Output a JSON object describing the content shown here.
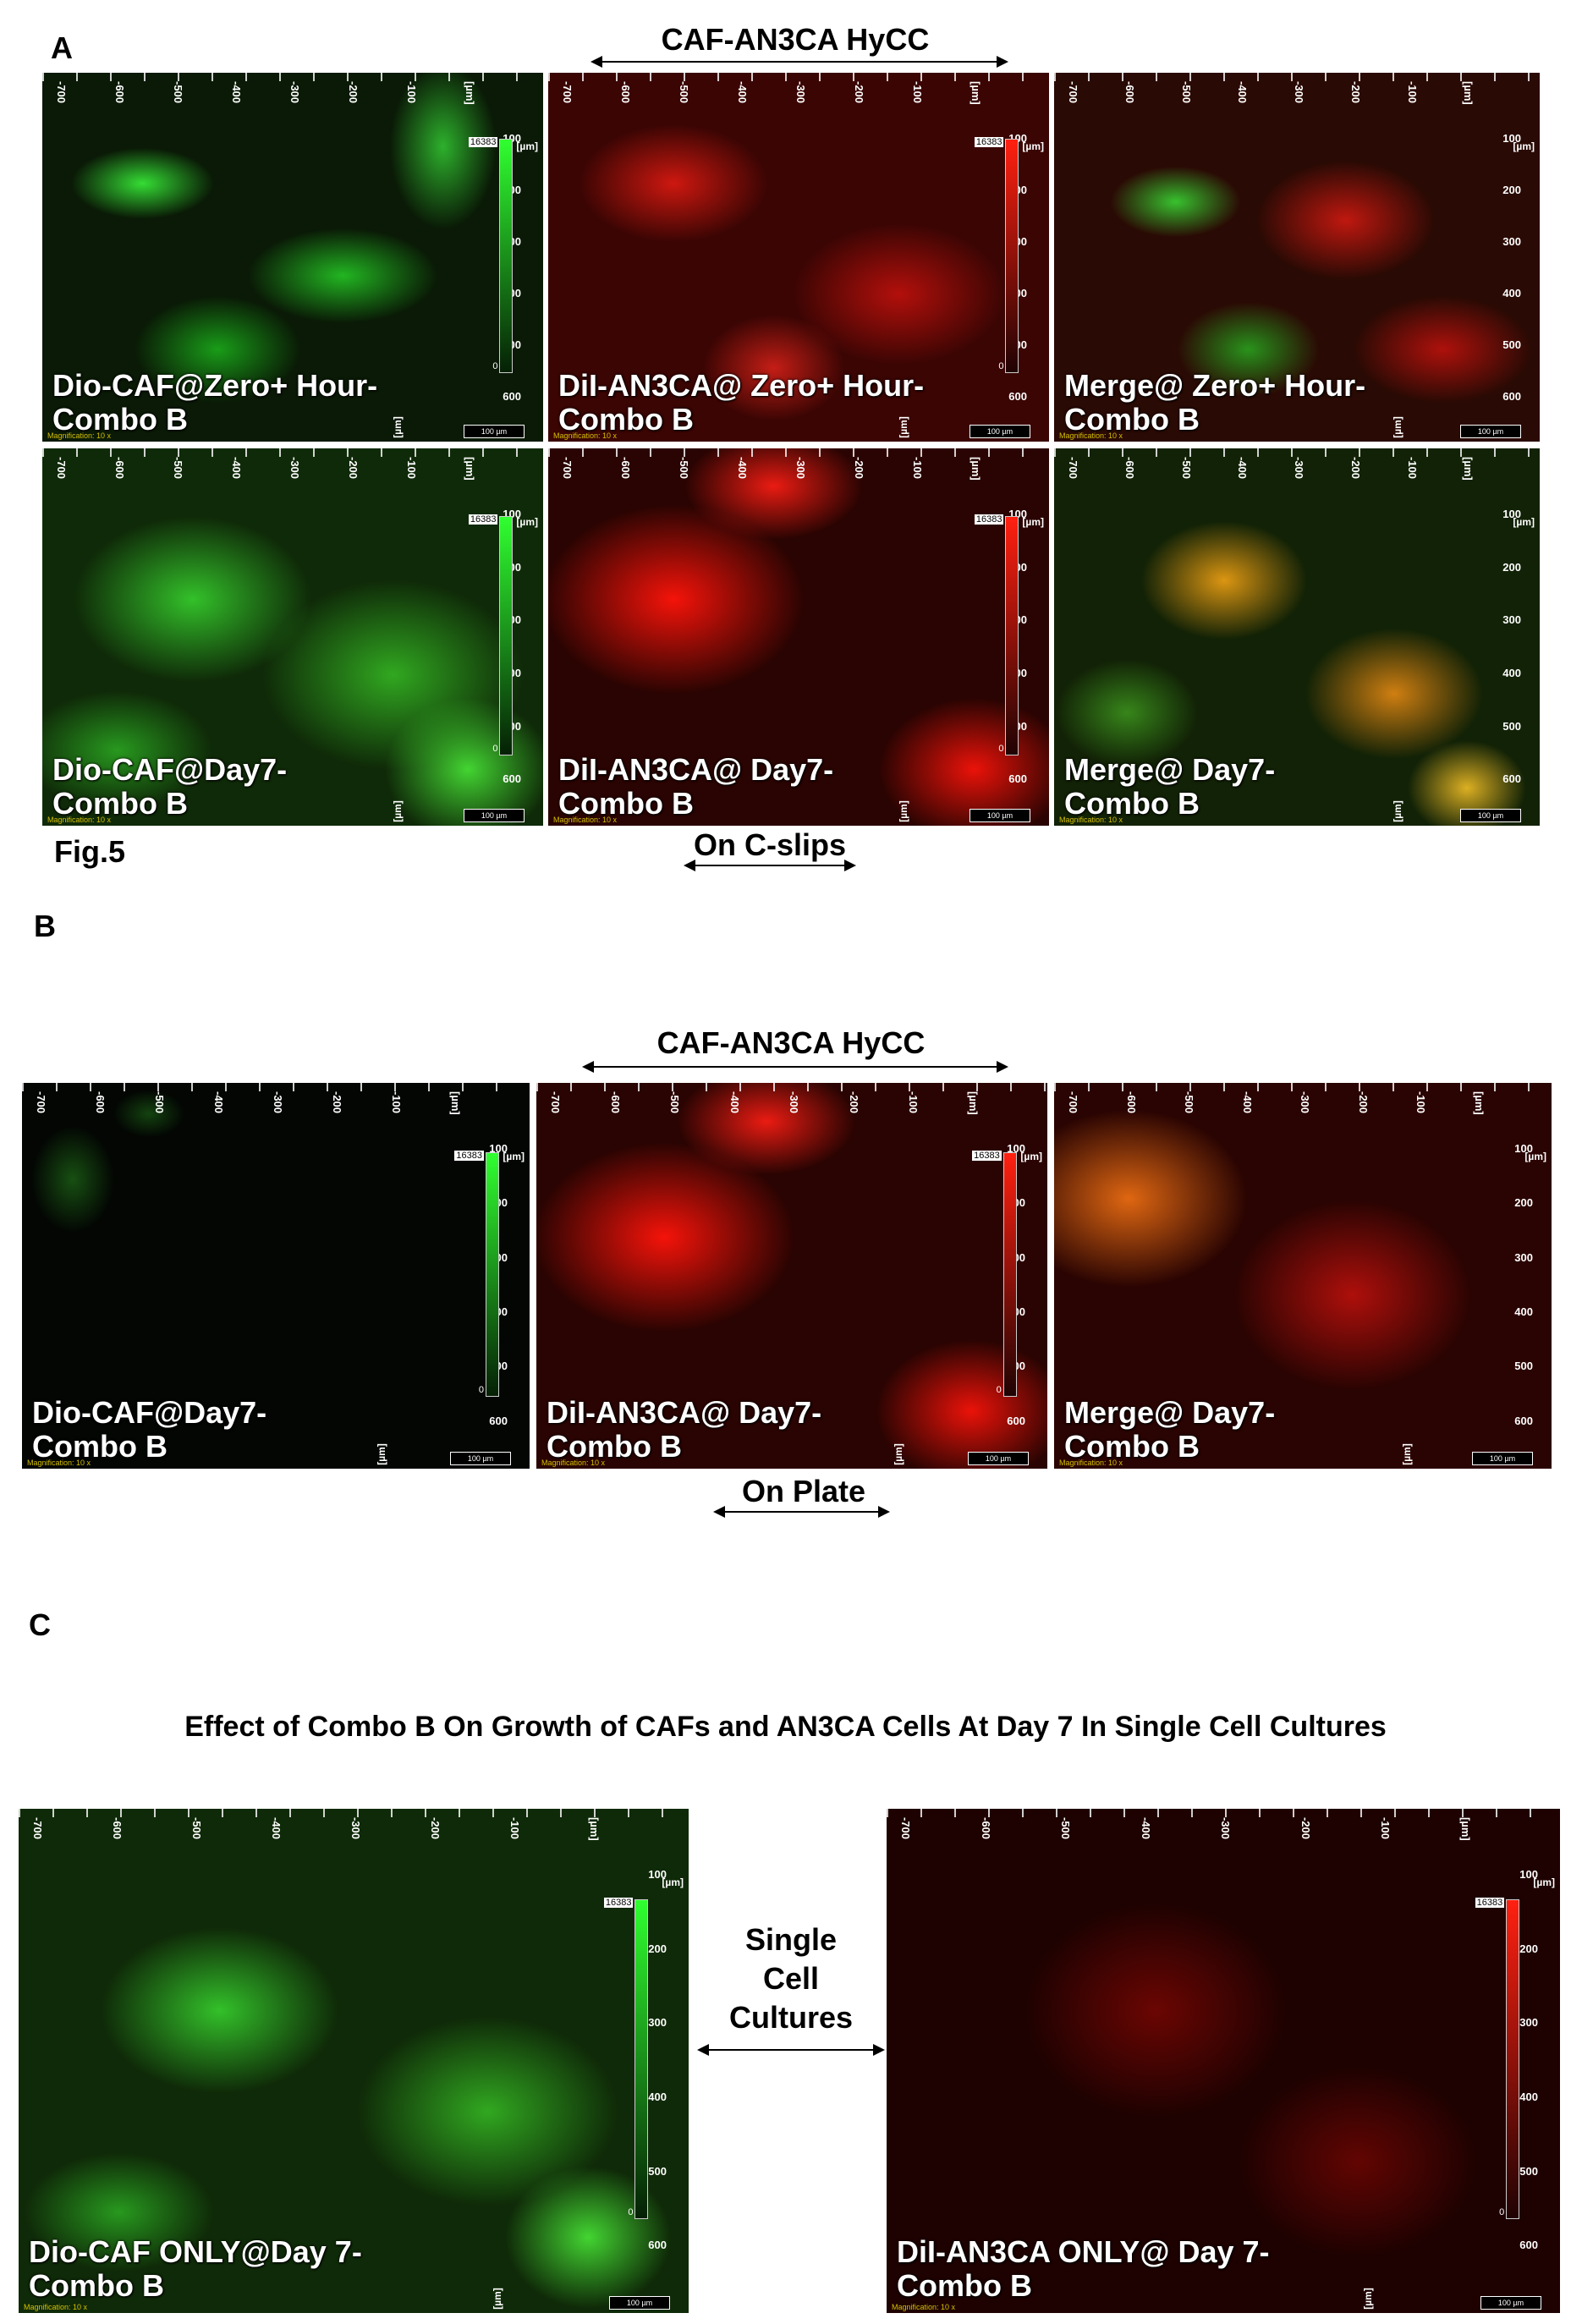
{
  "sections": {
    "A": "A",
    "B": "B",
    "C": "C"
  },
  "fig_label": "Fig.5",
  "a": {
    "header": "CAF-AN3CA HyCC",
    "footer": "On C-slips",
    "captions": [
      [
        "Dio-CAF@Zero+  Hour-",
        "Combo B"
      ],
      [
        "DiI-AN3CA@ Zero+  Hour-",
        "Combo B"
      ],
      [
        "Merge@ Zero+  Hour-",
        "Combo B"
      ],
      [
        "Dio-CAF@Day7-",
        "Combo B"
      ],
      [
        "DiI-AN3CA@ Day7-",
        "Combo B"
      ],
      [
        "Merge@ Day7-",
        "Combo B"
      ]
    ]
  },
  "b": {
    "header": "CAF-AN3CA HyCC",
    "footer": "On Plate",
    "captions": [
      [
        "Dio-CAF@Day7-",
        "Combo B"
      ],
      [
        "DiI-AN3CA@ Day7-",
        "Combo B"
      ],
      [
        "Merge@ Day7-",
        "Combo B"
      ]
    ]
  },
  "c": {
    "title": "Effect of Combo B On Growth of CAFs and AN3CA Cells At Day 7 In Single Cell Cultures",
    "middle_label": [
      "Single",
      "Cell",
      "Cultures"
    ],
    "captions": [
      [
        "Dio-CAF ONLY@Day 7-",
        "Combo B"
      ],
      [
        "DiI-AN3CA ONLY@ Day 7-",
        "Combo B"
      ]
    ]
  },
  "overlay": {
    "top_ticks": [
      "-700",
      "-600",
      "-500",
      "-400",
      "-300",
      "-200",
      "-100",
      "[µm]"
    ],
    "right_ticks": [
      "100",
      "200",
      "300",
      "400",
      "500",
      "600"
    ],
    "unit": "[µm]",
    "intensity_max": "16383",
    "intensity_min": "0",
    "scale_label": "100 µm",
    "magnification_a": "Magnification: 10 x",
    "magnification_c": "Magnification: 10 x"
  },
  "colors": {
    "green_channel": "#30ff30",
    "red_channel": "#ff2010",
    "merge_yellow": "#ffaa14"
  }
}
